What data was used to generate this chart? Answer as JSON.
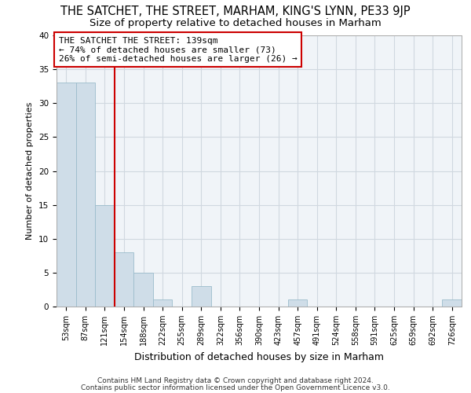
{
  "title": "THE SATCHET, THE STREET, MARHAM, KING'S LYNN, PE33 9JP",
  "subtitle": "Size of property relative to detached houses in Marham",
  "xlabel": "Distribution of detached houses by size in Marham",
  "ylabel": "Number of detached properties",
  "categories": [
    "53sqm",
    "87sqm",
    "121sqm",
    "154sqm",
    "188sqm",
    "222sqm",
    "255sqm",
    "289sqm",
    "322sqm",
    "356sqm",
    "390sqm",
    "423sqm",
    "457sqm",
    "491sqm",
    "524sqm",
    "558sqm",
    "591sqm",
    "625sqm",
    "659sqm",
    "692sqm",
    "726sqm"
  ],
  "values": [
    33,
    33,
    15,
    8,
    5,
    1,
    0,
    3,
    0,
    0,
    0,
    0,
    1,
    0,
    0,
    0,
    0,
    0,
    0,
    0,
    1
  ],
  "bar_color": "#cfdde8",
  "bar_edge_color": "#9bbccc",
  "red_line_index": 2.5,
  "annotation_line1": "THE SATCHET THE STREET: 139sqm",
  "annotation_line2": "← 74% of detached houses are smaller (73)",
  "annotation_line3": "26% of semi-detached houses are larger (26) →",
  "annotation_box_color": "#ffffff",
  "annotation_box_edge": "#cc0000",
  "red_line_color": "#cc0000",
  "grid_color": "#d0d8e0",
  "bg_color": "#f0f4f8",
  "footer_line1": "Contains HM Land Registry data © Crown copyright and database right 2024.",
  "footer_line2": "Contains public sector information licensed under the Open Government Licence v3.0.",
  "ylim": [
    0,
    40
  ],
  "yticks": [
    0,
    5,
    10,
    15,
    20,
    25,
    30,
    35,
    40
  ],
  "title_fontsize": 10.5,
  "subtitle_fontsize": 9.5,
  "xlabel_fontsize": 9,
  "ylabel_fontsize": 8,
  "tick_fontsize": 7,
  "annotation_fontsize": 8,
  "footer_fontsize": 6.5
}
